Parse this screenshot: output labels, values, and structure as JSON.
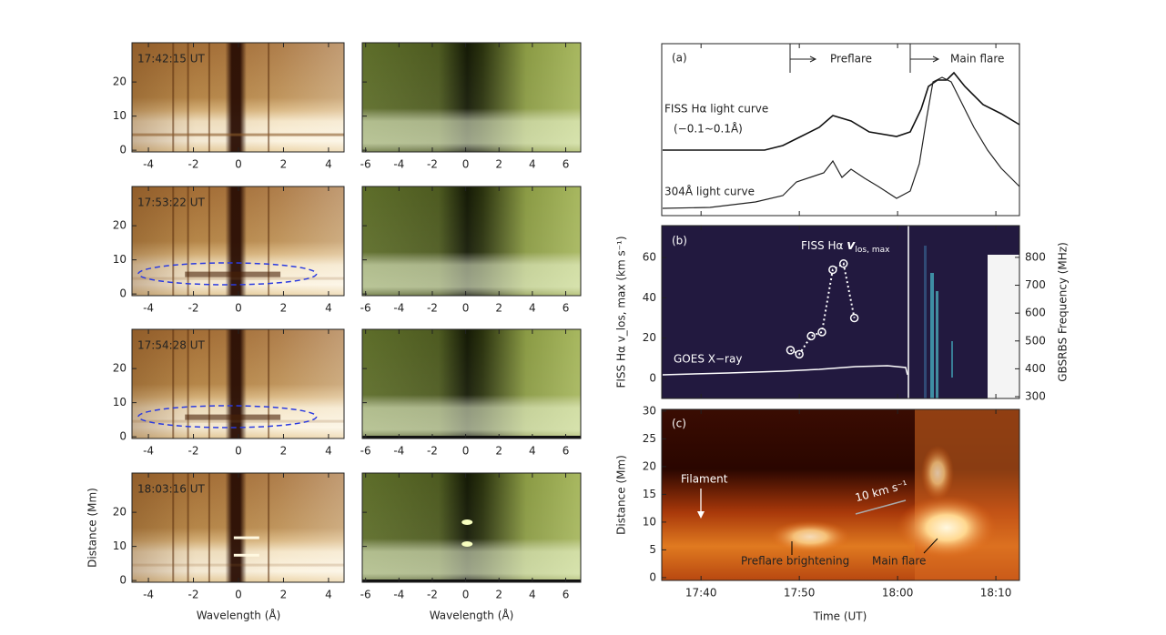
{
  "spectra": {
    "timestamps": [
      "17:42:15 UT",
      "17:53:22 UT",
      "17:54:28 UT",
      "18:03:16 UT"
    ],
    "x_label": "Wavelength (Å)",
    "y_label": "Distance (Mm)",
    "left_xlim": [
      -4.73,
      4.69
    ],
    "left_xticks": [
      -4,
      -2,
      0,
      2,
      4
    ],
    "right_xlim": [
      -6.2,
      6.9
    ],
    "right_xticks": [
      -6,
      -4,
      -2,
      0,
      2,
      4,
      6
    ],
    "ylim": [
      -0.5,
      31.5
    ],
    "yticks": [
      0,
      10,
      20
    ]
  },
  "time_axis": {
    "label": "Time (UT)",
    "xlim": [
      36,
      72.4
    ],
    "xticks": [
      {
        "value": 40,
        "label": "17:40"
      },
      {
        "value": 50,
        "label": "17:50"
      },
      {
        "value": 60,
        "label": "18:00"
      },
      {
        "value": 70,
        "label": "18:10"
      }
    ]
  },
  "panel_a": {
    "label": "(a)",
    "phases": [
      "Preflare",
      "Main flare"
    ],
    "halpha_label": "FISS Hα light curve",
    "halpha_range": "(−0.1∼0.1Å)",
    "euv_label": "304Å light curve"
  },
  "panel_b": {
    "label": "(b)",
    "series_name": "FISS Hα",
    "series_var": "v",
    "series_sub": "los, max",
    "goes_label": "GOES X−ray",
    "y_label": "FISS Hα v_los, max (km s⁻¹)",
    "y2_label": "GBSRBS Frequency (MHz)",
    "ylim": [
      -10,
      75.9
    ],
    "yticks": [
      0,
      20,
      40,
      60
    ],
    "y2lim": [
      293.5,
      914
    ],
    "y2ticks": [
      300,
      400,
      500,
      600,
      700,
      800
    ],
    "x": [
      49.1,
      50.0,
      51.2,
      52.3,
      53.4,
      54.5,
      55.6
    ],
    "values": [
      14,
      12,
      21,
      23,
      54,
      57,
      30
    ]
  },
  "panel_c": {
    "label": "(c)",
    "y_label": "Distance (Mm)",
    "ylim": [
      -0.5,
      30.3
    ],
    "yticks": [
      0,
      5,
      10,
      15,
      20,
      25,
      30
    ],
    "annotations": [
      "Filament",
      "10 km s⁻¹",
      "Preflare brightening",
      "Main flare"
    ]
  }
}
